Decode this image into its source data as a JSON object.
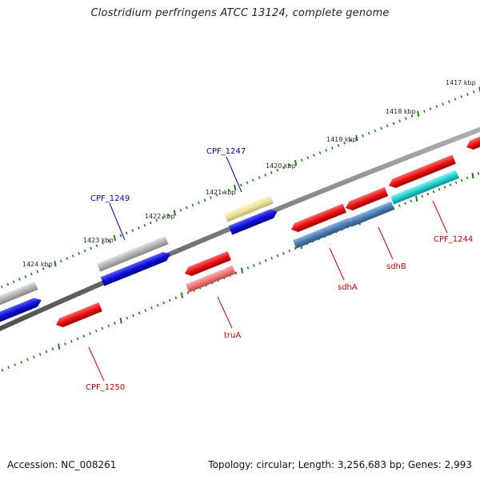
{
  "title": "Clostridium perfringens ATCC 13124, complete genome",
  "footer": {
    "accession": "Accession: NC_008261",
    "summary": "Topology: circular; Length: 3,256,683 bp; Genes: 2,993"
  },
  "colors": {
    "backbone": "#7a7a7a",
    "tick": "#1f7a1f",
    "red": "#ee1111",
    "blue": "#1010dd",
    "gray": "#b4b4b4",
    "yellow": "#ece39a",
    "steelblue": "#4a7fb5",
    "cyan": "#1fcfcf",
    "pink": "#ee7777",
    "label_red": "#cc0000",
    "label_blue": "#0000cc"
  },
  "kbp_labels": [
    "1417 kbp",
    "1418 kbp",
    "1419 kbp",
    "1420 kbp",
    "1421 kbp",
    "1422 kbp",
    "1423 kbp",
    "1424 kbp"
  ],
  "gene_labels": {
    "cpf1247": "CPF_1247",
    "cpf1249": "CPF_1249",
    "trua": "truA",
    "cpf1250": "CPF_1250",
    "sdha": "sdhA",
    "sdhb": "sdhB",
    "cpf1244": "CPF_1244"
  }
}
